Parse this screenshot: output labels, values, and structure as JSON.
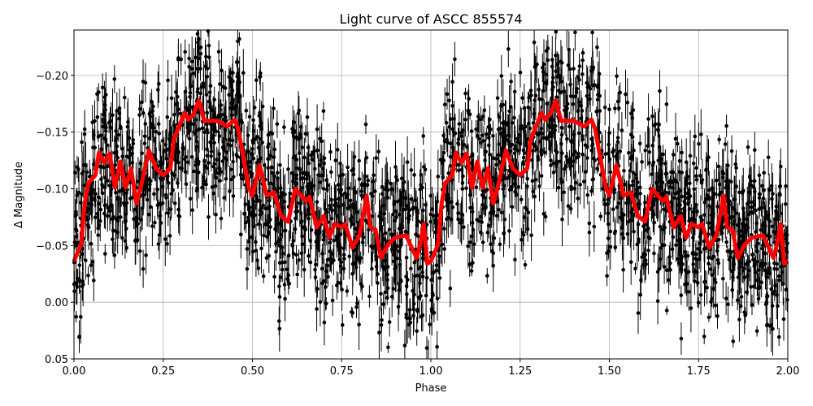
{
  "chart_data": {
    "type": "scatter",
    "title": "Light curve of ASCC 855574",
    "xlabel": "Phase",
    "ylabel": "Δ Magnitude",
    "xlim": [
      0,
      2
    ],
    "ylim": [
      0.05,
      -0.24
    ],
    "y_inverted": true,
    "grid": true,
    "x_ticks": [
      "0.00",
      "0.25",
      "0.50",
      "0.75",
      "1.00",
      "1.25",
      "1.50",
      "1.75",
      "2.00"
    ],
    "y_ticks": [
      "−0.20",
      "−0.15",
      "−0.10",
      "−0.05",
      "0.00",
      "0.05"
    ],
    "colors": {
      "points": "#000000",
      "model": "#ff0000",
      "grid": "#b0b0b0"
    },
    "series": [
      {
        "role": "observations with error bars",
        "style": "black points",
        "period_repeated": true
      },
      {
        "role": "binned model curve",
        "style": "thick red line",
        "phase": [
          0,
          0.02,
          0.03,
          0.04,
          0.06,
          0.07,
          0.085,
          0.1,
          0.115,
          0.13,
          0.145,
          0.16,
          0.175,
          0.19,
          0.21,
          0.23,
          0.25,
          0.27,
          0.28,
          0.3,
          0.31,
          0.32,
          0.335,
          0.35,
          0.365,
          0.4,
          0.43,
          0.45,
          0.46,
          0.49,
          0.5,
          0.52,
          0.54,
          0.56,
          0.58,
          0.6,
          0.62,
          0.65,
          0.66,
          0.68,
          0.7,
          0.715,
          0.73,
          0.75,
          0.76,
          0.78,
          0.8,
          0.82,
          0.83,
          0.845,
          0.86,
          0.88,
          0.9,
          0.93,
          0.96,
          0.97,
          0.98,
          0.99,
          1.0
        ],
        "magnitude": [
          -0.036,
          -0.051,
          -0.087,
          -0.105,
          -0.112,
          -0.132,
          -0.123,
          -0.131,
          -0.101,
          -0.124,
          -0.101,
          -0.118,
          -0.087,
          -0.105,
          -0.134,
          -0.118,
          -0.112,
          -0.118,
          -0.144,
          -0.159,
          -0.167,
          -0.161,
          -0.166,
          -0.178,
          -0.16,
          -0.16,
          -0.155,
          -0.161,
          -0.153,
          -0.101,
          -0.094,
          -0.121,
          -0.094,
          -0.097,
          -0.076,
          -0.071,
          -0.1,
          -0.089,
          -0.093,
          -0.066,
          -0.076,
          -0.057,
          -0.069,
          -0.066,
          -0.069,
          -0.048,
          -0.059,
          -0.094,
          -0.066,
          -0.064,
          -0.039,
          -0.051,
          -0.057,
          -0.059,
          -0.039,
          -0.051,
          -0.069,
          -0.034,
          -0.036
        ]
      }
    ]
  }
}
